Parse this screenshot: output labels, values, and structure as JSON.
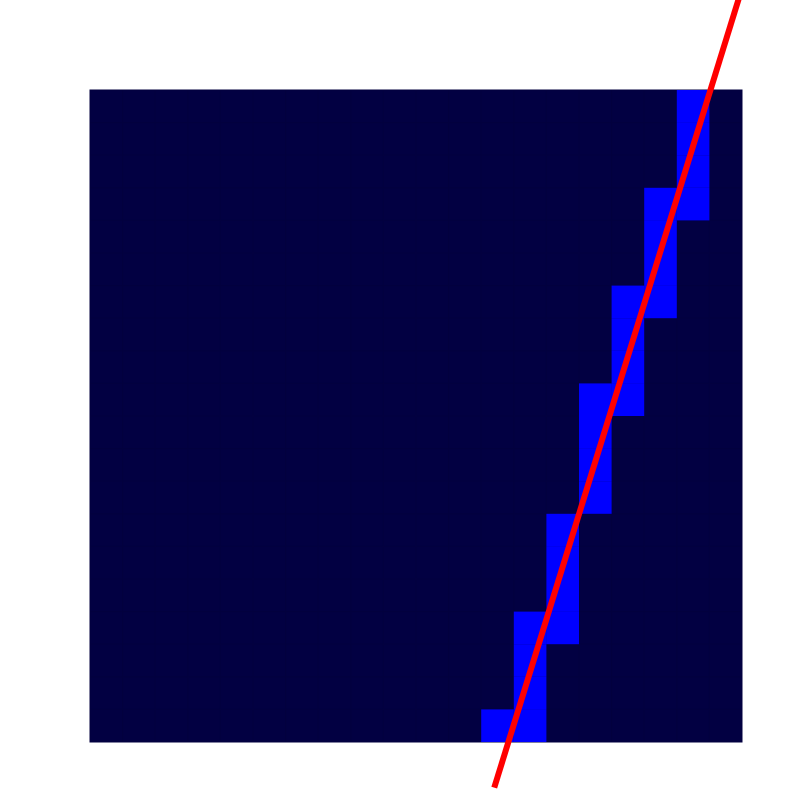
{
  "colors": {
    "background": "#ffffff",
    "grid_cell": "#020042",
    "grid_cell_edge": "#03003f",
    "lit_cell": "#0000ff",
    "line": "#ff0000"
  },
  "grid": {
    "columns": 20,
    "rows": 20,
    "lit_cells": [
      {
        "col": 18,
        "row": 0
      },
      {
        "col": 18,
        "row": 1
      },
      {
        "col": 18,
        "row": 2
      },
      {
        "col": 18,
        "row": 3
      },
      {
        "col": 17,
        "row": 3
      },
      {
        "col": 17,
        "row": 4
      },
      {
        "col": 17,
        "row": 5
      },
      {
        "col": 17,
        "row": 6
      },
      {
        "col": 16,
        "row": 6
      },
      {
        "col": 16,
        "row": 7
      },
      {
        "col": 16,
        "row": 8
      },
      {
        "col": 16,
        "row": 9
      },
      {
        "col": 15,
        "row": 9
      },
      {
        "col": 15,
        "row": 10
      },
      {
        "col": 15,
        "row": 11
      },
      {
        "col": 15,
        "row": 12
      },
      {
        "col": 14,
        "row": 13
      },
      {
        "col": 14,
        "row": 14
      },
      {
        "col": 14,
        "row": 15
      },
      {
        "col": 14,
        "row": 16
      },
      {
        "col": 13,
        "row": 16
      },
      {
        "col": 13,
        "row": 17
      },
      {
        "col": 13,
        "row": 18
      },
      {
        "col": 13,
        "row": 19
      },
      {
        "col": 12,
        "row": 19
      }
    ]
  },
  "line": {
    "start": {
      "col": 12.4,
      "row": 21.4
    },
    "end": {
      "col": 19.9,
      "row": -2.8
    }
  }
}
